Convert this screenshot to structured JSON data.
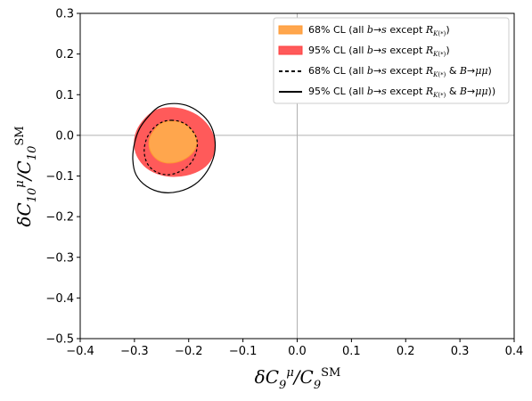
{
  "chart_data": {
    "type": "contour",
    "xlabel": "δC9μ/C9SM",
    "ylabel": "δC10μ/C10SM",
    "xlim": [
      -0.4,
      0.4
    ],
    "ylim": [
      -0.5,
      0.3
    ],
    "xticks": [
      "−0.4",
      "−0.3",
      "−0.2",
      "−0.1",
      "0.0",
      "0.1",
      "0.2",
      "0.3",
      "0.4"
    ],
    "yticks": [
      "−0.5",
      "−0.4",
      "−0.3",
      "−0.2",
      "−0.1",
      "0.0",
      "0.1",
      "0.2",
      "0.3"
    ],
    "reference_lines": {
      "x": 0.0,
      "y": 0.0,
      "color": "#b0b0b0"
    },
    "legend_position": "top-right",
    "series": [
      {
        "name": "68% CL (all b→s except RK(*))",
        "kind": "filled",
        "color": "#ffa64d",
        "points": [
          [
            -0.235,
            0.035
          ],
          [
            -0.215,
            0.032
          ],
          [
            -0.198,
            0.018
          ],
          [
            -0.186,
            -0.005
          ],
          [
            -0.187,
            -0.03
          ],
          [
            -0.2,
            -0.052
          ],
          [
            -0.222,
            -0.066
          ],
          [
            -0.245,
            -0.067
          ],
          [
            -0.262,
            -0.055
          ],
          [
            -0.272,
            -0.033
          ],
          [
            -0.272,
            -0.007
          ],
          [
            -0.262,
            0.016
          ],
          [
            -0.25,
            0.03
          ]
        ]
      },
      {
        "name": "95% CL (all b→s except RK(*))",
        "kind": "filled",
        "color": "#ff5a5a",
        "points": [
          [
            -0.235,
            0.068
          ],
          [
            -0.208,
            0.063
          ],
          [
            -0.18,
            0.045
          ],
          [
            -0.16,
            0.015
          ],
          [
            -0.152,
            -0.02
          ],
          [
            -0.157,
            -0.055
          ],
          [
            -0.175,
            -0.082
          ],
          [
            -0.205,
            -0.098
          ],
          [
            -0.24,
            -0.1
          ],
          [
            -0.272,
            -0.085
          ],
          [
            -0.292,
            -0.058
          ],
          [
            -0.3,
            -0.025
          ],
          [
            -0.296,
            0.01
          ],
          [
            -0.28,
            0.042
          ],
          [
            -0.26,
            0.062
          ]
        ]
      },
      {
        "name": "68% CL (all b→s except RK(*) & B→μμ)",
        "kind": "dashed",
        "color": "#000000",
        "points": [
          [
            -0.232,
            0.037
          ],
          [
            -0.212,
            0.032
          ],
          [
            -0.196,
            0.016
          ],
          [
            -0.185,
            -0.01
          ],
          [
            -0.186,
            -0.04
          ],
          [
            -0.196,
            -0.068
          ],
          [
            -0.215,
            -0.088
          ],
          [
            -0.238,
            -0.097
          ],
          [
            -0.26,
            -0.09
          ],
          [
            -0.276,
            -0.07
          ],
          [
            -0.282,
            -0.04
          ],
          [
            -0.278,
            -0.01
          ],
          [
            -0.266,
            0.016
          ],
          [
            -0.25,
            0.032
          ]
        ]
      },
      {
        "name": "95% CL (all b→s except RK(*) & B→μμ))",
        "kind": "solid",
        "color": "#000000",
        "points": [
          [
            -0.232,
            0.078
          ],
          [
            -0.205,
            0.074
          ],
          [
            -0.18,
            0.056
          ],
          [
            -0.161,
            0.028
          ],
          [
            -0.152,
            -0.008
          ],
          [
            -0.153,
            -0.048
          ],
          [
            -0.166,
            -0.088
          ],
          [
            -0.188,
            -0.12
          ],
          [
            -0.218,
            -0.138
          ],
          [
            -0.25,
            -0.14
          ],
          [
            -0.278,
            -0.125
          ],
          [
            -0.297,
            -0.097
          ],
          [
            -0.303,
            -0.06
          ],
          [
            -0.3,
            -0.02
          ],
          [
            -0.29,
            0.018
          ],
          [
            -0.272,
            0.05
          ],
          [
            -0.255,
            0.07
          ]
        ]
      }
    ]
  }
}
